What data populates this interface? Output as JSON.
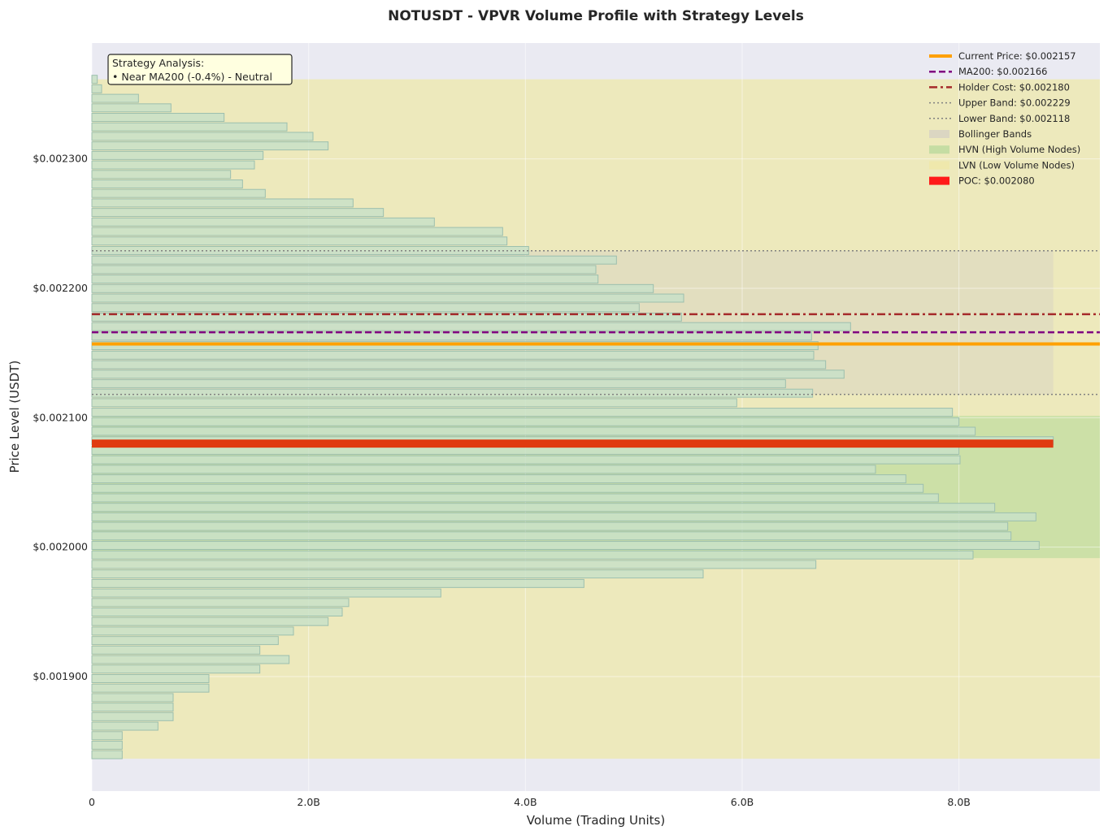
{
  "chart_data": {
    "type": "bar",
    "orientation": "horizontal",
    "title": "NOTUSDT - VPVR Volume Profile with Strategy Levels",
    "xlabel": "Volume (Trading Units)",
    "ylabel": "Price Level (USDT)",
    "xlim": [
      0,
      9300000000
    ],
    "ylim": [
      0.0018115,
      0.0023895
    ],
    "x_ticks": [
      {
        "value": 0,
        "label": "0"
      },
      {
        "value": 2000000000,
        "label": "2.0B"
      },
      {
        "value": 4000000000,
        "label": "4.0B"
      },
      {
        "value": 6000000000,
        "label": "6.0B"
      },
      {
        "value": 8000000000,
        "label": "8.0B"
      }
    ],
    "y_ticks": [
      {
        "value": 0.0019,
        "label": "$0.001900"
      },
      {
        "value": 0.002,
        "label": "$0.002000"
      },
      {
        "value": 0.0021,
        "label": "$0.002100"
      },
      {
        "value": 0.0022,
        "label": "$0.002200"
      },
      {
        "value": 0.0023,
        "label": "$0.002300"
      }
    ],
    "grid": true,
    "legend_position": "top-right",
    "bin_start": 0.0018365,
    "bin_step": 7.35e-06,
    "volumes": [
      280000000,
      280000000,
      280000000,
      610000000,
      750000000,
      750000000,
      750000000,
      1080000000,
      1080000000,
      1550000000,
      1820000000,
      1550000000,
      1720000000,
      1860000000,
      2180000000,
      2310000000,
      2370000000,
      3220000000,
      4540000000,
      5640000000,
      6680000000,
      8130000000,
      8740000000,
      8480000000,
      8450000000,
      8710000000,
      8330000000,
      7810000000,
      7670000000,
      7510000000,
      7230000000,
      8010000000,
      8000000000,
      8870000000,
      8150000000,
      8000000000,
      7940000000,
      5950000000,
      6650000000,
      6400000000,
      6940000000,
      6770000000,
      6660000000,
      6700000000,
      6640000000,
      7000000000,
      5440000000,
      5050000000,
      5460000000,
      5180000000,
      4670000000,
      4650000000,
      4840000000,
      4030000000,
      3830000000,
      3790000000,
      3160000000,
      2690000000,
      2410000000,
      1600000000,
      1390000000,
      1280000000,
      1500000000,
      1580000000,
      2180000000,
      2040000000,
      1800000000,
      1220000000,
      730000000,
      430000000,
      90000000,
      50000000
    ],
    "poc": {
      "price": 0.00208,
      "volume": 8870000000,
      "label": "POC: $0.002080",
      "color": "#ff1a1a"
    },
    "levels": [
      {
        "name": "Current Price",
        "value": 0.002157,
        "label": "Current Price: $0.002157",
        "color": "#ffa000",
        "style": "solid"
      },
      {
        "name": "MA200",
        "value": 0.002166,
        "label": "MA200: $0.002166",
        "color": "#800080",
        "style": "dashed"
      },
      {
        "name": "Holder Cost",
        "value": 0.00218,
        "label": "Holder Cost: $0.002180",
        "color": "#a52a2a",
        "style": "dashdot"
      },
      {
        "name": "Upper Band",
        "value": 0.002229,
        "label": "Upper Band: $0.002229",
        "color": "#808080",
        "style": "dotted"
      },
      {
        "name": "Lower Band",
        "value": 0.002118,
        "label": "Lower Band: $0.002118",
        "color": "#808080",
        "style": "dotted"
      }
    ],
    "bands": [
      {
        "name": "LVN",
        "label": "LVN (Low Volume Nodes)",
        "from": 0.0018365,
        "to": 0.0023615,
        "x_to": 9300000000,
        "color": "#eee8aa"
      },
      {
        "name": "Bollinger",
        "label": "Bollinger Bands",
        "from": 0.002118,
        "to": 0.002229,
        "x_to": 8870000000,
        "color": "#d8d4c2"
      },
      {
        "name": "HVN",
        "label": "HVN (High Volume Nodes)",
        "from": 0.0019915,
        "to": 0.0021015,
        "x_to": 9300000000,
        "color": "#c0dca0"
      }
    ],
    "annotation": {
      "title": "Strategy Analysis:",
      "lines": [
        "• Near MA200 (-0.4%) - Neutral"
      ]
    },
    "colors": {
      "plot_background": "#eaeaf2",
      "bar_fill": "#c8e0c8",
      "bar_edge": "#9cbfae",
      "grid": "#ffffff",
      "annotation_background": "#ffffe0"
    }
  }
}
